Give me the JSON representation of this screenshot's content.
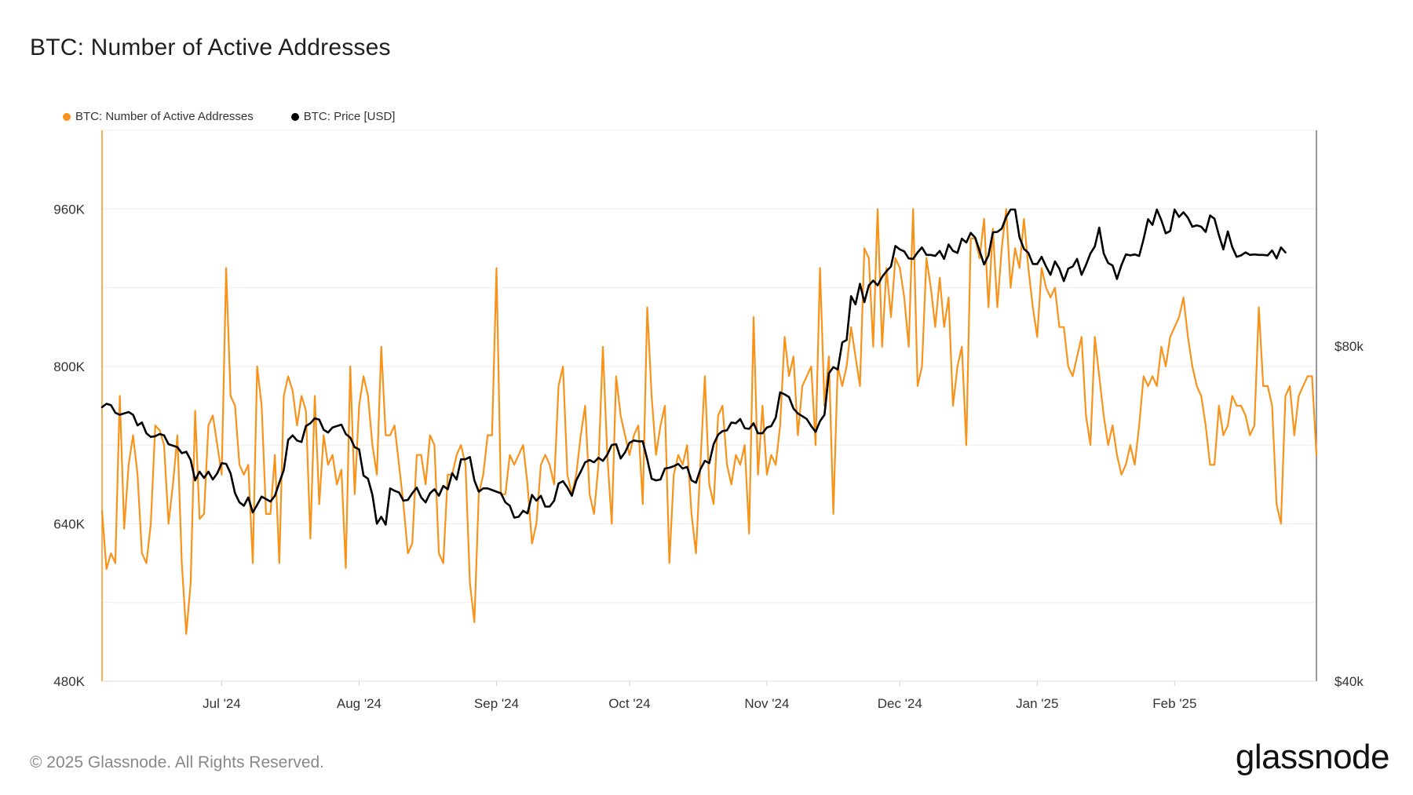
{
  "title": "BTC: Number of Active Addresses",
  "legend": [
    {
      "label": "BTC: Number of Active Addresses",
      "color": "#f7931a"
    },
    {
      "label": "BTC: Price [USD]",
      "color": "#000000"
    }
  ],
  "footer": {
    "copyright": "© 2025 Glassnode. All Rights Reserved.",
    "brand": "glassnode"
  },
  "chart_data": {
    "type": "line",
    "title": "BTC: Number of Active Addresses",
    "start_date": "2024-06-04",
    "x_ticks": [
      {
        "label": "Jul '24",
        "date": "2024-07-01"
      },
      {
        "label": "Aug '24",
        "date": "2024-08-01"
      },
      {
        "label": "Sep '24",
        "date": "2024-09-01"
      },
      {
        "label": "Oct '24",
        "date": "2024-10-01"
      },
      {
        "label": "Nov '24",
        "date": "2024-11-01"
      },
      {
        "label": "Dec '24",
        "date": "2024-12-01"
      },
      {
        "label": "Jan '25",
        "date": "2025-01-01"
      },
      {
        "label": "Feb '25",
        "date": "2025-02-01"
      }
    ],
    "y_left": {
      "label": "",
      "ticks": [
        {
          "label": "480K",
          "value": 480
        },
        {
          "label": "640K",
          "value": 640
        },
        {
          "label": "800K",
          "value": 800
        },
        {
          "label": "960K",
          "value": 960
        }
      ],
      "range": [
        480,
        1040
      ],
      "unit": "thousands"
    },
    "y_right": {
      "label": "",
      "scale": "log",
      "ticks": [
        {
          "label": "$40k",
          "value": 40000
        },
        {
          "label": "$80k",
          "value": 80000
        }
      ],
      "range": [
        40000,
        125000
      ]
    },
    "grid": true,
    "series": [
      {
        "name": "BTC: Number of Active Addresses",
        "axis": "left",
        "color": "#f7931a",
        "values": [
          653,
          594,
          610,
          600,
          770,
          635,
          700,
          730,
          690,
          610,
          600,
          640,
          740,
          735,
          720,
          640,
          680,
          730,
          600,
          528,
          580,
          755,
          645,
          650,
          740,
          750,
          720,
          690,
          900,
          770,
          760,
          700,
          690,
          700,
          600,
          800,
          760,
          650,
          650,
          710,
          600,
          770,
          790,
          775,
          740,
          770,
          755,
          625,
          770,
          660,
          730,
          700,
          710,
          680,
          695,
          595,
          800,
          670,
          760,
          790,
          770,
          720,
          690,
          820,
          730,
          730,
          740,
          700,
          660,
          610,
          620,
          710,
          710,
          680,
          730,
          720,
          610,
          600,
          690,
          690,
          710,
          720,
          700,
          580,
          540,
          670,
          690,
          730,
          730,
          900,
          670,
          670,
          710,
          700,
          710,
          720,
          680,
          620,
          640,
          700,
          710,
          700,
          680,
          780,
          800,
          690,
          670,
          690,
          730,
          760,
          670,
          650,
          700,
          820,
          710,
          640,
          790,
          750,
          730,
          710,
          730,
          740,
          660,
          860,
          770,
          710,
          740,
          760,
          600,
          690,
          710,
          700,
          720,
          650,
          610,
          700,
          790,
          680,
          660,
          750,
          760,
          700,
          680,
          710,
          700,
          720,
          630,
          850,
          690,
          760,
          690,
          710,
          700,
          740,
          830,
          790,
          810,
          730,
          780,
          790,
          800,
          720,
          900,
          760,
          810,
          650,
          800,
          780,
          800,
          840,
          810,
          780,
          920,
          910,
          820,
          960,
          820,
          900,
          850,
          910,
          900,
          870,
          820,
          960,
          780,
          800,
          910,
          880,
          840,
          890,
          840,
          870,
          760,
          800,
          820,
          720,
          930,
          930,
          910,
          950,
          860,
          940,
          860,
          920,
          960,
          880,
          920,
          900,
          950,
          900,
          860,
          830,
          900,
          880,
          870,
          880,
          840,
          840,
          800,
          790,
          810,
          830,
          750,
          720,
          830,
          790,
          750,
          720,
          740,
          710,
          690,
          700,
          720,
          700,
          740,
          790,
          780,
          790,
          780,
          820,
          800,
          830,
          840,
          850,
          870,
          830,
          800,
          780,
          770,
          740,
          700,
          700,
          760,
          730,
          740,
          770,
          760,
          760,
          750,
          730,
          740,
          860,
          780,
          780,
          760,
          660,
          640,
          770,
          780,
          730,
          770,
          780,
          790,
          790,
          710
        ]
      },
      {
        "name": "BTC: Price [USD]",
        "axis": "right",
        "color": "#000000",
        "values": [
          70500,
          71000,
          70800,
          69700,
          69400,
          69600,
          69800,
          69400,
          67900,
          68300,
          66800,
          66300,
          66400,
          66700,
          66500,
          65300,
          65100,
          64900,
          64100,
          64300,
          63200,
          60600,
          61700,
          60900,
          61700,
          60700,
          61500,
          62800,
          62700,
          61500,
          59000,
          57900,
          57500,
          58500,
          56700,
          57600,
          58600,
          58300,
          58000,
          58700,
          60300,
          61900,
          65900,
          66500,
          65800,
          65600,
          67800,
          68200,
          68900,
          68700,
          67300,
          66900,
          67600,
          67800,
          68000,
          66700,
          66200,
          64900,
          64600,
          61200,
          60800,
          58800,
          55400,
          56200,
          55300,
          59600,
          59300,
          59100,
          58100,
          58200,
          59000,
          59700,
          58500,
          57900,
          59000,
          59500,
          58700,
          59900,
          59500,
          61500,
          60700,
          63300,
          63300,
          63600,
          60600,
          59200,
          59600,
          59600,
          59400,
          59200,
          59000,
          57900,
          57500,
          56100,
          56200,
          56900,
          56600,
          58800,
          58100,
          58700,
          57400,
          57400,
          58100,
          60200,
          60500,
          59700,
          58700,
          60600,
          61700,
          62900,
          63200,
          62900,
          63500,
          63100,
          63900,
          65200,
          65300,
          63400,
          64200,
          65500,
          65800,
          65700,
          65700,
          63300,
          60800,
          60600,
          60700,
          62100,
          62200,
          62400,
          62700,
          62100,
          62300,
          60600,
          60300,
          62000,
          63100,
          62800,
          65300,
          66600,
          67100,
          67200,
          68300,
          68200,
          68800,
          67500,
          67400,
          68200,
          66800,
          66800,
          67600,
          67800,
          69000,
          72700,
          72400,
          72000,
          70300,
          69600,
          69200,
          68800,
          67800,
          67000,
          68500,
          69400,
          75600,
          76600,
          76200,
          80600,
          81000,
          88700,
          87200,
          91000,
          87600,
          90700,
          91600,
          90700,
          92300,
          93400,
          94300,
          98400,
          97700,
          97300,
          95900,
          95800,
          97100,
          98100,
          96600,
          96600,
          96400,
          97400,
          95800,
          98700,
          97400,
          97000,
          99900,
          99100,
          101100,
          100100,
          97400,
          94700,
          96500,
          101200,
          101300,
          102000,
          104500,
          106100,
          106100,
          100200,
          97800,
          97000,
          94800,
          94800,
          96200,
          94300,
          92700,
          95300,
          93900,
          91500,
          93900,
          94300,
          95800,
          92700,
          94600,
          96900,
          98300,
          102200,
          96900,
          95000,
          94500,
          91900,
          94600,
          96700,
          96500,
          96700,
          96400,
          99800,
          104000,
          102800,
          106100,
          103800,
          101000,
          101500,
          106100,
          104500,
          105500,
          104300,
          102400,
          102700,
          102400,
          101300,
          104800,
          104100,
          100600,
          97700,
          101400,
          98200,
          96200,
          96500,
          97100,
          96600,
          96700,
          96600,
          96600,
          96500,
          97500,
          95900,
          98100,
          97100
        ]
      }
    ]
  }
}
